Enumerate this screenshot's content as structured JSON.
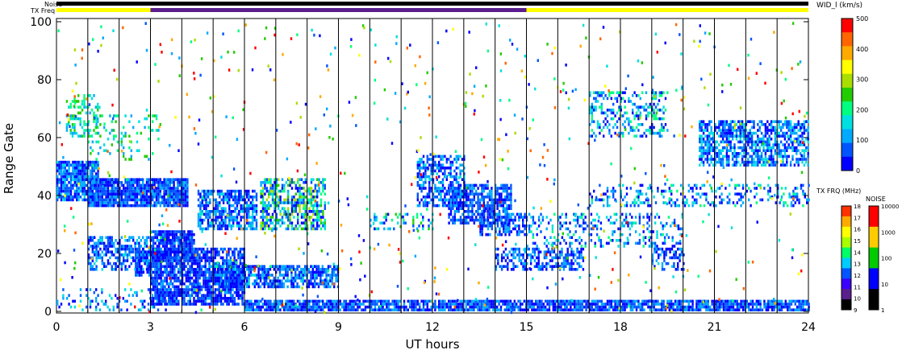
{
  "chart_data": {
    "type": "heatmap",
    "title": "",
    "xlabel": "UT hours",
    "ylabel": "Range Gate",
    "xlim": [
      0,
      24
    ],
    "ylim": [
      0,
      100
    ],
    "x_ticks": [
      "0",
      "3",
      "6",
      "9",
      "12",
      "15",
      "18",
      "21",
      "24"
    ],
    "y_ticks": [
      "0",
      "20",
      "40",
      "60",
      "80",
      "100"
    ],
    "vertical_markers_hours": [
      1,
      2,
      3,
      4,
      5,
      6,
      7,
      8,
      9,
      10,
      11,
      12,
      13,
      14,
      15,
      16,
      17,
      18,
      19,
      20,
      21,
      22,
      23
    ],
    "top_bars": {
      "noise_label": "Noise",
      "txfreq_label": "TX Freq",
      "txfreq_segments": [
        {
          "start": 0,
          "end": 3,
          "color": "#ffff00"
        },
        {
          "start": 3,
          "end": 15,
          "color": "#5a1f8c"
        },
        {
          "start": 15,
          "end": 24,
          "color": "#ffff00"
        }
      ]
    },
    "colorbar_main": {
      "label": "WID_l (km/s)",
      "ticks": [
        "0",
        "100",
        "200",
        "300",
        "400",
        "500"
      ],
      "range": [
        0,
        500
      ],
      "colors": [
        "#0000ff",
        "#0055ff",
        "#00aaff",
        "#00e0e0",
        "#00ff80",
        "#22cc00",
        "#aadd00",
        "#ffff00",
        "#ffaa00",
        "#ff6600",
        "#ff0000"
      ]
    },
    "colorbar_txfreq": {
      "label": "TX FRQ (MHz)",
      "ticks": [
        "9",
        "10",
        "11",
        "12",
        "13",
        "14",
        "15",
        "16",
        "17",
        "18"
      ],
      "colors": [
        "#000000",
        "#5a1f8c",
        "#3a00ff",
        "#0055ff",
        "#00ccff",
        "#00ff66",
        "#aaff00",
        "#ffff00",
        "#ffaa00",
        "#ff3300"
      ]
    },
    "colorbar_noise": {
      "label": "NOISE",
      "ticks": [
        "1",
        "10",
        "100",
        "1000",
        "10000"
      ],
      "colors": [
        "#000000",
        "#0000ff",
        "#00cc00",
        "#ffcc00",
        "#ff0000"
      ]
    },
    "bands": [
      {
        "t0": 0.0,
        "t1": 1.3,
        "g0": 38,
        "g1": 52,
        "density": 0.85,
        "color_range": [
          0,
          0.3
        ]
      },
      {
        "t0": 1.0,
        "t1": 4.2,
        "g0": 36,
        "g1": 46,
        "density": 0.9,
        "color_range": [
          0,
          0.25
        ]
      },
      {
        "t0": 0.3,
        "t1": 1.3,
        "g0": 60,
        "g1": 75,
        "density": 0.35,
        "color_range": [
          0.2,
          0.55
        ]
      },
      {
        "t0": 1.0,
        "t1": 3.3,
        "g0": 52,
        "g1": 68,
        "density": 0.15,
        "color_range": [
          0.2,
          0.5
        ]
      },
      {
        "t0": 2.5,
        "t1": 6.0,
        "g0": 12,
        "g1": 22,
        "density": 0.8,
        "color_range": [
          0,
          0.2
        ]
      },
      {
        "t0": 3.0,
        "t1": 4.4,
        "g0": 18,
        "g1": 28,
        "density": 0.9,
        "color_range": [
          0,
          0.2
        ]
      },
      {
        "t0": 1.0,
        "t1": 3.0,
        "g0": 14,
        "g1": 26,
        "density": 0.55,
        "color_range": [
          0,
          0.3
        ]
      },
      {
        "t0": 4.5,
        "t1": 6.4,
        "g0": 28,
        "g1": 42,
        "density": 0.7,
        "color_range": [
          0,
          0.3
        ]
      },
      {
        "t0": 6.5,
        "t1": 8.6,
        "g0": 28,
        "g1": 46,
        "density": 0.6,
        "color_range": [
          0,
          0.6
        ]
      },
      {
        "t0": 5.0,
        "t1": 9.0,
        "g0": 8,
        "g1": 16,
        "density": 0.7,
        "color_range": [
          0,
          0.3
        ]
      },
      {
        "t0": 0.0,
        "t1": 3.5,
        "g0": 0,
        "g1": 8,
        "density": 0.25,
        "color_range": [
          0,
          0.35
        ]
      },
      {
        "t0": 3.0,
        "t1": 6.0,
        "g0": 2,
        "g1": 12,
        "density": 0.8,
        "color_range": [
          0,
          0.2
        ]
      },
      {
        "t0": 6.0,
        "t1": 24.0,
        "g0": 0,
        "g1": 4,
        "density": 0.85,
        "color_range": [
          0,
          0.25
        ]
      },
      {
        "t0": 11.5,
        "t1": 13.0,
        "g0": 36,
        "g1": 54,
        "density": 0.6,
        "color_range": [
          0,
          0.3
        ]
      },
      {
        "t0": 12.5,
        "t1": 14.5,
        "g0": 30,
        "g1": 44,
        "density": 0.7,
        "color_range": [
          0,
          0.25
        ]
      },
      {
        "t0": 13.5,
        "t1": 15.0,
        "g0": 26,
        "g1": 34,
        "density": 0.6,
        "color_range": [
          0,
          0.25
        ]
      },
      {
        "t0": 14.0,
        "t1": 16.8,
        "g0": 14,
        "g1": 22,
        "density": 0.55,
        "color_range": [
          0,
          0.25
        ]
      },
      {
        "t0": 15.0,
        "t1": 20.0,
        "g0": 22,
        "g1": 34,
        "density": 0.25,
        "color_range": [
          0,
          0.4
        ]
      },
      {
        "t0": 17.0,
        "t1": 24.0,
        "g0": 36,
        "g1": 44,
        "density": 0.3,
        "color_range": [
          0,
          0.4
        ]
      },
      {
        "t0": 17.0,
        "t1": 19.5,
        "g0": 60,
        "g1": 76,
        "density": 0.3,
        "color_range": [
          0,
          0.45
        ]
      },
      {
        "t0": 20.5,
        "t1": 24.0,
        "g0": 50,
        "g1": 66,
        "density": 0.65,
        "color_range": [
          0,
          0.35
        ]
      },
      {
        "t0": 19.0,
        "t1": 20.0,
        "g0": 14,
        "g1": 22,
        "density": 0.5,
        "color_range": [
          0,
          0.3
        ]
      },
      {
        "t0": 10.0,
        "t1": 12.0,
        "g0": 28,
        "g1": 34,
        "density": 0.3,
        "color_range": [
          0,
          0.5
        ]
      }
    ]
  }
}
